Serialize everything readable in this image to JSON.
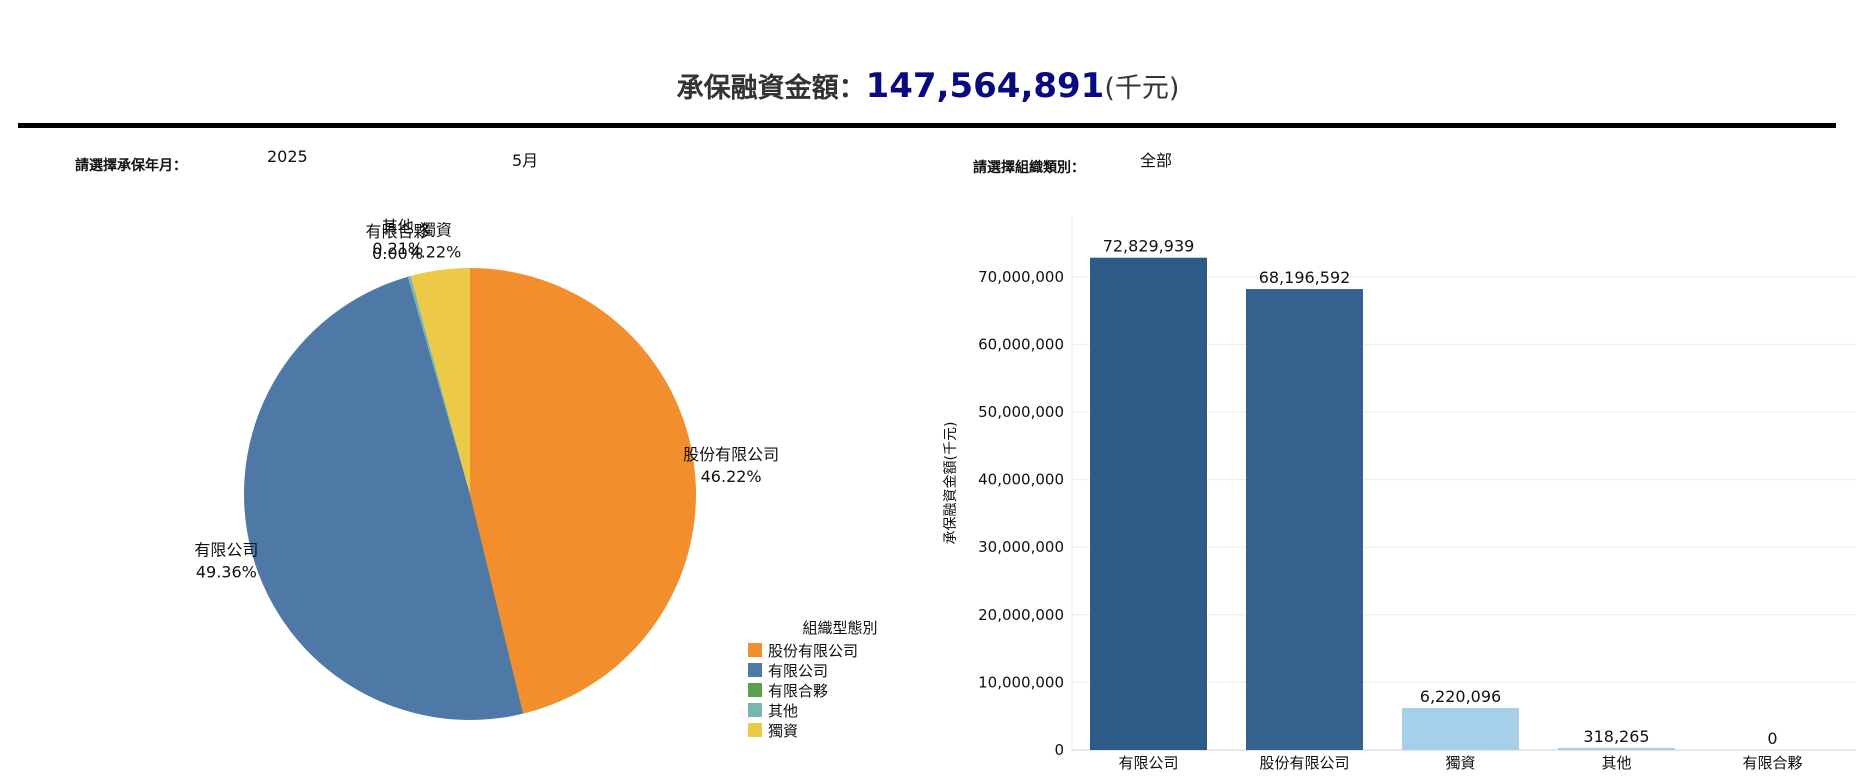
{
  "header": {
    "label": "承保融資金額：",
    "amount": "147,564,891",
    "unit": "(千元)"
  },
  "filters": {
    "period_label": "請選擇承保年月：",
    "year": "2025",
    "month": "5月",
    "org_label": "請選擇組織類別：",
    "org_value": "全部"
  },
  "chart_data": [
    {
      "type": "pie",
      "labels": [
        "股份有限公司",
        "有限公司",
        "有限合夥",
        "其他",
        "獨資"
      ],
      "values": [
        46.22,
        49.36,
        0.0,
        0.21,
        4.22
      ],
      "value_labels": [
        "46.22%",
        "49.36%",
        "0.00%",
        "0.21%",
        "4.22%"
      ],
      "colors": [
        "#f28e2b",
        "#4e79a7",
        "#59a14f",
        "#76b7b2",
        "#edc948"
      ],
      "legend_title": "組織型態別",
      "legend": [
        "股份有限公司",
        "有限公司",
        "有限合夥",
        "其他",
        "獨資"
      ],
      "legend_position": "bottom-right"
    },
    {
      "type": "bar",
      "categories": [
        "有限公司",
        "股份有限公司",
        "獨資",
        "其他",
        "有限合夥"
      ],
      "values": [
        72829939,
        68196592,
        6220096,
        318265,
        0
      ],
      "value_labels": [
        "72,829,939",
        "68,196,592",
        "6,220,096",
        "318,265",
        "0"
      ],
      "colors": [
        "#2e5a87",
        "#35618f",
        "#a6cfe9",
        "#a6cfe9",
        "#a6cfe9"
      ],
      "ylabel": "承保融資金額(千元)",
      "ylim": [
        0,
        79000000
      ],
      "yticks": [
        0,
        10000000,
        20000000,
        30000000,
        40000000,
        50000000,
        60000000,
        70000000
      ],
      "ytick_labels": [
        "0",
        "10,000,000",
        "20,000,000",
        "30,000,000",
        "40,000,000",
        "50,000,000",
        "60,000,000",
        "70,000,000"
      ],
      "grid": true
    }
  ]
}
